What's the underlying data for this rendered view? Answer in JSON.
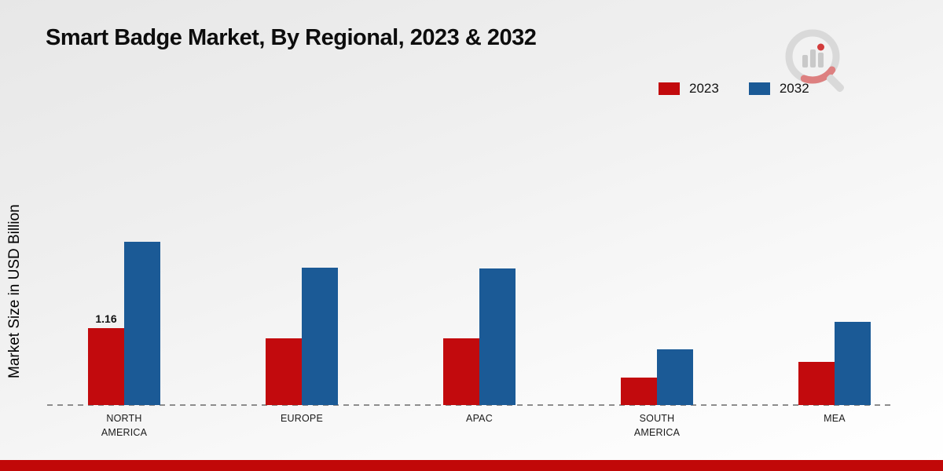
{
  "title": "Smart Badge Market, By Regional, 2023 & 2032",
  "ylabel": "Market Size in USD Billion",
  "colors": {
    "series_2023": "#c20a0d",
    "series_2032": "#1b5a96",
    "footer": "#c10808",
    "baseline": "#8d8d8d"
  },
  "chart_data": {
    "type": "bar",
    "title": "Smart Badge Market, By Regional, 2023 & 2032",
    "xlabel": "",
    "ylabel": "Market Size in USD Billion",
    "categories": [
      "NORTH AMERICA",
      "EUROPE",
      "APAC",
      "SOUTH AMERICA",
      "MEA"
    ],
    "series": [
      {
        "name": "2023",
        "color": "#c20a0d",
        "values": [
          1.16,
          1.0,
          1.0,
          0.42,
          0.65
        ]
      },
      {
        "name": "2032",
        "color": "#1b5a96",
        "values": [
          2.46,
          2.07,
          2.06,
          0.84,
          1.26
        ]
      }
    ],
    "value_labels": [
      [
        "1.16",
        "",
        "",
        "",
        ""
      ],
      [
        "",
        "",
        "",
        "",
        ""
      ]
    ],
    "ylim": [
      0,
      2.9
    ],
    "grid": false,
    "legend_position": "top-right",
    "baseline_style": "dashed"
  }
}
